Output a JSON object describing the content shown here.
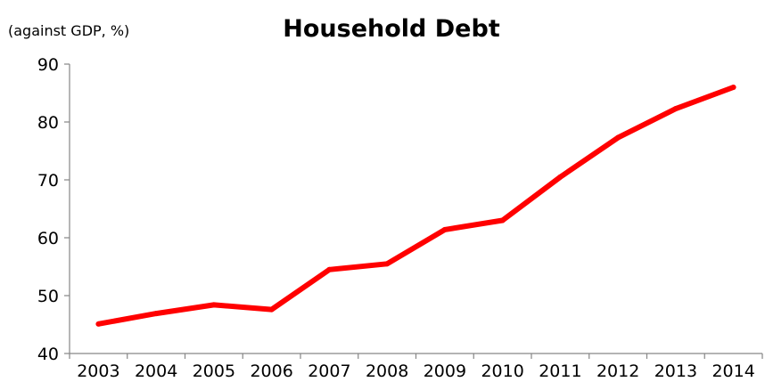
{
  "chart_data": {
    "type": "line",
    "title": "Household Debt",
    "ylabel": "(against GDP, %)",
    "xlabel": "",
    "x": [
      "2003",
      "2004",
      "2005",
      "2006",
      "2007",
      "2008",
      "2009",
      "2010",
      "2011",
      "2012",
      "2013",
      "2014"
    ],
    "series": [
      {
        "values": [
          45.1,
          46.9,
          48.4,
          47.6,
          54.5,
          55.5,
          61.4,
          63.0,
          70.5,
          77.3,
          82.3,
          86.0
        ]
      }
    ],
    "ylim": [
      40,
      90
    ],
    "yticks": [
      "40",
      "50",
      "60",
      "70",
      "80",
      "90"
    ],
    "grid": false,
    "legend": "none",
    "colors": {
      "line": "#ff0000",
      "axis": "#868686",
      "text": "#000000"
    }
  }
}
